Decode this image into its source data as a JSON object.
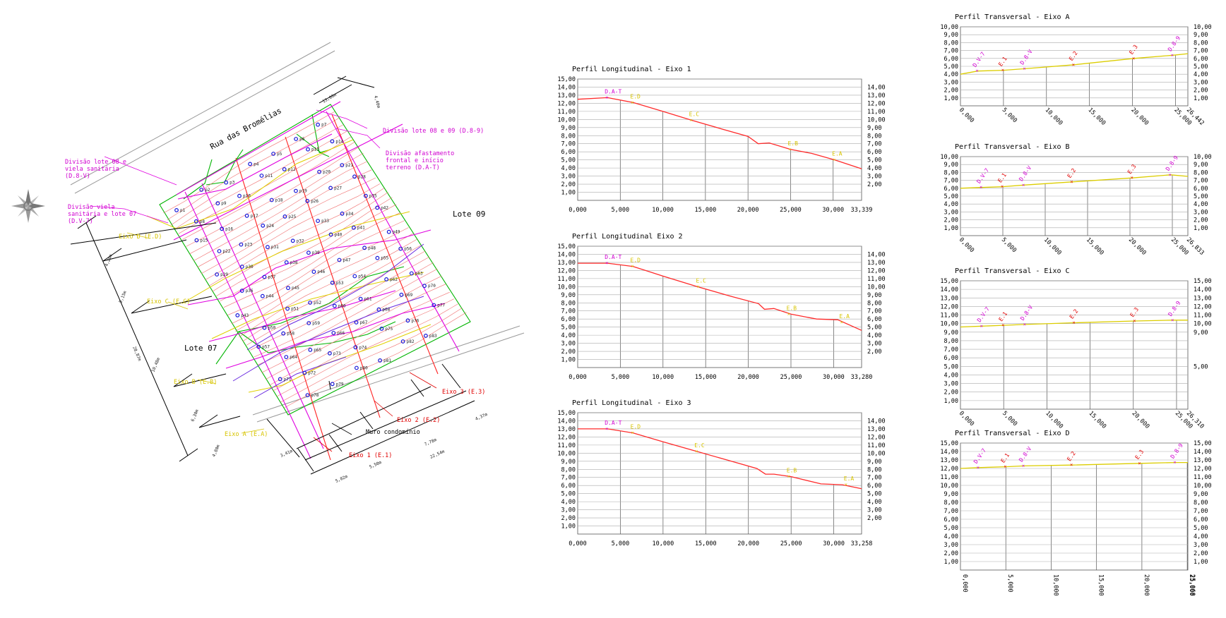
{
  "plan": {
    "street": "Rua das Bromélias",
    "lote_07": "Lote 07",
    "lote_09": "Lote 09",
    "muro": "Muro condomínio",
    "div_frontal": [
      "Divisão afastamento",
      "frontal e início",
      "terreno (D.A-T)"
    ],
    "div_08_09": "Divisão lote 08 e 09 (D.8-9)",
    "div_08_viela": [
      "Divisão lote 08 e",
      "viela sanitária",
      "(D.8-V)"
    ],
    "div_viela_07": [
      "Divisão viela",
      "sanitária e lote 07",
      "(D.V-7)"
    ],
    "eixo_d": "Eixo D (E.D)",
    "eixo_c": "Eixo C (E.C)",
    "eixo_b": "Eixo B (E.B)",
    "eixo_a": "Eixo A (E.A)",
    "eixo_1": "Eixo 1 (E.1)",
    "eixo_2": "Eixo 2 (E.2)",
    "eixo_3": "Eixo 3 (E.3)",
    "dim_top": "13,00m",
    "dim_top2": "4,40m",
    "dims_left": [
      "4,20m",
      "5,15m",
      "10,48m",
      "6,30m",
      "4,80m",
      "28,87m"
    ],
    "dims_bottom": [
      "3,41m",
      "5,02m",
      "5,50m",
      "7,78m",
      "4,37m",
      "22,54m"
    ],
    "points": [
      "p1",
      "p2",
      "p3",
      "p4",
      "p5",
      "p6",
      "p7",
      "p8",
      "p9",
      "p10",
      "p11",
      "p12",
      "p13",
      "p14",
      "p15",
      "p16",
      "p17",
      "p18",
      "p19",
      "p20",
      "p21",
      "p22",
      "p23",
      "p24",
      "p25",
      "p26",
      "p27",
      "p28",
      "p29",
      "p30",
      "p31",
      "p32",
      "p33",
      "p34",
      "p35",
      "p36",
      "p37",
      "p38",
      "p39",
      "p40",
      "p41",
      "p42",
      "p43",
      "p44",
      "p45",
      "p46",
      "p47",
      "p48",
      "p49",
      "p50",
      "p51",
      "p52",
      "p53",
      "p54",
      "p55",
      "p56",
      "p57",
      "p58",
      "p59",
      "p60",
      "p61",
      "p62",
      "p63",
      "p64",
      "p65",
      "p66",
      "p67",
      "p68",
      "p69",
      "p70",
      "p71",
      "p72",
      "p73",
      "p74",
      "p75",
      "p76",
      "p77",
      "p78",
      "p79",
      "p80",
      "p81",
      "p82",
      "p83"
    ]
  },
  "chart_data": [
    {
      "type": "line",
      "title": "Perfil Longitudinal - Eixo 1",
      "x": [
        0,
        3.5,
        6.5,
        10,
        13.4,
        17,
        20,
        21.2,
        22.5,
        25,
        27.5,
        30.2,
        33.339
      ],
      "y": [
        12.5,
        12.7,
        12.1,
        11.0,
        9.9,
        8.8,
        7.9,
        7.0,
        7.1,
        6.3,
        5.8,
        5.0,
        3.9
      ],
      "xticks": [
        "0,000",
        "5,000",
        "10,000",
        "15,000",
        "20,000",
        "25,000",
        "30,000",
        "33,339"
      ],
      "yticks_left": [
        "1,00",
        "2,00",
        "3,00",
        "4,00",
        "5,00",
        "6,00",
        "7,00",
        "8,00",
        "9,00",
        "10,00",
        "11,00",
        "12,00",
        "13,00",
        "14,00",
        "15,00"
      ],
      "yticks_right": [
        "2,00",
        "3,00",
        "4,00",
        "5,00",
        "6,00",
        "7,00",
        "8,00",
        "9,00",
        "10,00",
        "11,00",
        "12,00",
        "13,00",
        "14,00"
      ],
      "ylim": [
        0,
        15
      ],
      "markers": [
        {
          "label": "D.A-T",
          "x": 3.5,
          "y": 12.7,
          "color": "#d100d1"
        },
        {
          "label": "E.D",
          "x": 6.5,
          "y": 12.1,
          "color": "#d7c400"
        },
        {
          "label": "E.C",
          "x": 13.4,
          "y": 9.9,
          "color": "#d7c400"
        },
        {
          "label": "E.B",
          "x": 25.0,
          "y": 6.3,
          "color": "#d7c400"
        },
        {
          "label": "E.A",
          "x": 30.2,
          "y": 5.0,
          "color": "#d7c400"
        }
      ]
    },
    {
      "type": "line",
      "title": "Perfil Longitudinal Eixo 2",
      "x": [
        0,
        3.5,
        6.5,
        10,
        14,
        18,
        21.2,
        21.9,
        23,
        25,
        28,
        30.5,
        33.28
      ],
      "y": [
        12.9,
        12.9,
        12.5,
        11.3,
        10.0,
        8.8,
        7.9,
        7.2,
        7.3,
        6.6,
        6.0,
        5.9,
        4.6
      ],
      "xticks": [
        "0,000",
        "5,000",
        "10,000",
        "15,000",
        "20,000",
        "25,000",
        "30,000",
        "33,280"
      ],
      "yticks_left": [
        "1,00",
        "2,00",
        "3,00",
        "4,00",
        "5,00",
        "6,00",
        "7,00",
        "8,00",
        "9,00",
        "10,00",
        "11,00",
        "12,00",
        "13,00",
        "14,00",
        "15,00"
      ],
      "yticks_right": [
        "2,00",
        "3,00",
        "4,00",
        "5,00",
        "6,00",
        "7,00",
        "8,00",
        "9,00",
        "10,00",
        "11,00",
        "12,00",
        "13,00",
        "14,00"
      ],
      "ylim": [
        0,
        15
      ],
      "markers": [
        {
          "label": "D.A-T",
          "x": 3.5,
          "y": 12.9,
          "color": "#d100d1"
        },
        {
          "label": "E.D",
          "x": 6.5,
          "y": 12.5,
          "color": "#d7c400"
        },
        {
          "label": "E.C",
          "x": 14.2,
          "y": 10.0,
          "color": "#d7c400"
        },
        {
          "label": "E.B",
          "x": 24.8,
          "y": 6.6,
          "color": "#d7c400"
        },
        {
          "label": "E.A",
          "x": 31.0,
          "y": 5.6,
          "color": "#d7c400"
        }
      ]
    },
    {
      "type": "line",
      "title": "Perfil Longitudinal - Eixo 3",
      "x": [
        0,
        3.5,
        6.5,
        10,
        14,
        18,
        21,
        22,
        23,
        25,
        28.5,
        31,
        33.258
      ],
      "y": [
        13.0,
        13.0,
        12.5,
        11.4,
        10.2,
        9.0,
        8.1,
        7.4,
        7.4,
        7.1,
        6.2,
        6.1,
        5.6
      ],
      "xticks": [
        "0,000",
        "5,000",
        "10,000",
        "15,000",
        "20,000",
        "25,000",
        "30,000",
        "33,258"
      ],
      "yticks_left": [
        "1,00",
        "2,00",
        "3,00",
        "4,00",
        "5,00",
        "6,00",
        "7,00",
        "8,00",
        "9,00",
        "10,00",
        "11,00",
        "12,00",
        "13,00",
        "14,00",
        "15,00"
      ],
      "yticks_right": [
        "2,00",
        "3,00",
        "4,00",
        "5,00",
        "6,00",
        "7,00",
        "8,00",
        "9,00",
        "10,00",
        "11,00",
        "12,00",
        "13,00",
        "14,00"
      ],
      "ylim": [
        0,
        15
      ],
      "markers": [
        {
          "label": "D.A-T",
          "x": 3.5,
          "y": 13.0,
          "color": "#d100d1"
        },
        {
          "label": "E.D",
          "x": 6.5,
          "y": 12.5,
          "color": "#d7c400"
        },
        {
          "label": "E.C",
          "x": 14.0,
          "y": 10.2,
          "color": "#d7c400"
        },
        {
          "label": "E.B",
          "x": 24.8,
          "y": 7.1,
          "color": "#d7c400"
        },
        {
          "label": "E.A",
          "x": 31.5,
          "y": 6.1,
          "color": "#d7c400"
        }
      ]
    },
    {
      "type": "line",
      "title": "Perfil Transversal - Eixo A",
      "x": [
        0,
        2,
        5,
        7.5,
        13.2,
        20.2,
        24.7,
        26.442
      ],
      "y": [
        4.0,
        4.4,
        4.5,
        4.7,
        5.2,
        6.0,
        6.4,
        6.6
      ],
      "xticks": [
        "0,000",
        "5,000",
        "10,000",
        "15,000",
        "20,000",
        "25,000",
        "26,442"
      ],
      "yticks_left": [
        "1,00",
        "2,00",
        "3,00",
        "4,00",
        "5,00",
        "6,00",
        "7,00",
        "8,00",
        "9,00",
        "10,00"
      ],
      "yticks_right": [
        "1,00",
        "2,00",
        "3,00",
        "4,00",
        "5,00",
        "6,00",
        "7,00",
        "8,00",
        "9,00",
        "10,00"
      ],
      "ylim": [
        0,
        10
      ],
      "markers": [
        {
          "label": "D.V-7",
          "x": 2.0,
          "y": 4.4,
          "color": "#d100d1"
        },
        {
          "label": "E.1",
          "x": 5.0,
          "y": 4.5,
          "color": "#e00000"
        },
        {
          "label": "D.8-V",
          "x": 7.5,
          "y": 4.7,
          "color": "#d100d1"
        },
        {
          "label": "E.2",
          "x": 13.2,
          "y": 5.2,
          "color": "#e00000"
        },
        {
          "label": "E.3",
          "x": 20.2,
          "y": 6.0,
          "color": "#e00000"
        },
        {
          "label": "D.8-9",
          "x": 24.7,
          "y": 6.4,
          "color": "#d100d1"
        }
      ]
    },
    {
      "type": "line",
      "title": "Perfil Transversal - Eixo B",
      "x": [
        0,
        2.5,
        5,
        7.5,
        13.2,
        20.3,
        24.8,
        26.833
      ],
      "y": [
        6.0,
        6.1,
        6.2,
        6.4,
        6.8,
        7.3,
        7.7,
        7.5
      ],
      "xticks": [
        "0,000",
        "5,000",
        "10,000",
        "15,000",
        "20,000",
        "25,000",
        "26,833"
      ],
      "yticks_left": [
        "1,00",
        "2,00",
        "3,00",
        "4,00",
        "5,00",
        "6,00",
        "7,00",
        "8,00",
        "9,00",
        "10,00"
      ],
      "yticks_right": [
        "1,00",
        "2,00",
        "3,00",
        "4,00",
        "5,00",
        "6,00",
        "7,00",
        "8,00",
        "9,00",
        "10,00"
      ],
      "ylim": [
        0,
        10
      ],
      "markers": [
        {
          "label": "D.V-7",
          "x": 2.5,
          "y": 6.1,
          "color": "#d100d1"
        },
        {
          "label": "E.1",
          "x": 5.0,
          "y": 6.2,
          "color": "#e00000"
        },
        {
          "label": "D.8-V",
          "x": 7.5,
          "y": 6.4,
          "color": "#d100d1"
        },
        {
          "label": "E.2",
          "x": 13.2,
          "y": 6.8,
          "color": "#e00000"
        },
        {
          "label": "E.3",
          "x": 20.3,
          "y": 7.3,
          "color": "#e00000"
        },
        {
          "label": "D.8-9",
          "x": 24.8,
          "y": 7.7,
          "color": "#d100d1"
        }
      ]
    },
    {
      "type": "line",
      "title": "Perfil Transversal - Eixo C",
      "x": [
        0,
        2.5,
        5,
        7.5,
        13.2,
        20.2,
        24.6,
        26.31
      ],
      "y": [
        9.6,
        9.7,
        9.8,
        9.9,
        10.1,
        10.3,
        10.4,
        10.4
      ],
      "xticks": [
        "0,000",
        "5,000",
        "10,000",
        "15,000",
        "20,000",
        "25,000",
        "26,310"
      ],
      "yticks_left": [
        "1,00",
        "2,00",
        "3,00",
        "4,00",
        "5,00",
        "6,00",
        "7,00",
        "8,00",
        "9,00",
        "10,00",
        "11,00",
        "12,00",
        "13,00",
        "14,00",
        "15,00"
      ],
      "yticks_right": [
        "5,00",
        "9,00",
        "10,00",
        "11,00",
        "12,00",
        "13,00",
        "14,00",
        "15,00"
      ],
      "ylim": [
        0,
        15
      ],
      "markers": [
        {
          "label": "D.V-7",
          "x": 2.5,
          "y": 9.7,
          "color": "#d100d1"
        },
        {
          "label": "E.1",
          "x": 5.0,
          "y": 9.8,
          "color": "#e00000"
        },
        {
          "label": "D.8-V",
          "x": 7.5,
          "y": 9.9,
          "color": "#d100d1"
        },
        {
          "label": "E.2",
          "x": 13.2,
          "y": 10.1,
          "color": "#e00000"
        },
        {
          "label": "E.3",
          "x": 20.2,
          "y": 10.3,
          "color": "#e00000"
        },
        {
          "label": "D.8-9",
          "x": 24.6,
          "y": 10.4,
          "color": "#d100d1"
        }
      ]
    },
    {
      "type": "line",
      "title": "Perfil Transversal - Eixo D",
      "x": [
        0,
        2,
        5,
        7,
        12.3,
        19.8,
        23.7,
        25.068
      ],
      "y": [
        12.0,
        12.1,
        12.2,
        12.3,
        12.4,
        12.6,
        12.7,
        12.7
      ],
      "xticks": [
        "0,000",
        "5,000",
        "10,000",
        "15,000",
        "20,000",
        "25,000",
        "25,068"
      ],
      "yticks_left": [
        "1,00",
        "2,00",
        "3,00",
        "4,00",
        "5,00",
        "6,00",
        "7,00",
        "8,00",
        "9,00",
        "10,00",
        "11,00",
        "12,00",
        "13,00",
        "14,00",
        "15,00"
      ],
      "yticks_right": [
        "1,00",
        "2,00",
        "3,00",
        "4,00",
        "5,00",
        "6,00",
        "7,00",
        "8,00",
        "9,00",
        "10,00",
        "11,00",
        "12,00",
        "13,00",
        "14,00",
        "15,00"
      ],
      "ylim": [
        0,
        15
      ],
      "markers": [
        {
          "label": "D.V-7",
          "x": 2.0,
          "y": 12.1,
          "color": "#d100d1"
        },
        {
          "label": "E.1",
          "x": 5.0,
          "y": 12.2,
          "color": "#e00000"
        },
        {
          "label": "D.8-V",
          "x": 7.0,
          "y": 12.3,
          "color": "#d100d1"
        },
        {
          "label": "E.2",
          "x": 12.3,
          "y": 12.4,
          "color": "#e00000"
        },
        {
          "label": "E.3",
          "x": 19.8,
          "y": 12.6,
          "color": "#e00000"
        },
        {
          "label": "D.8-9",
          "x": 23.7,
          "y": 12.7,
          "color": "#d100d1"
        }
      ]
    }
  ]
}
